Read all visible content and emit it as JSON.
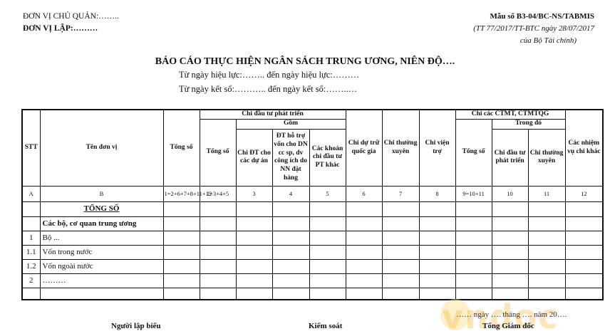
{
  "header": {
    "don_vi_chu_quan": "ĐƠN VỊ CHỦ QUẢN:……..",
    "don_vi_lap": "ĐƠN VỊ LẬP:………",
    "form_code": "Mẫu số B3-04/BC-NS/TABMIS",
    "circular": "(TT 77/2017/TT-BTC ngày 28/07/2017",
    "issuer": "của Bộ Tài chính)"
  },
  "title": "BÁO CÁO THỰC HIỆN NGÂN SÁCH TRUNG ƯƠNG, NIÊN ĐỘ….",
  "subtitle_1": "Từ ngày hiệu lực:…….. đến ngày hiệu lực:………",
  "subtitle_2": "Từ ngày kết sổ:……….. đến ngày kết sổ:……..…",
  "table": {
    "headers": {
      "stt": "STT",
      "ten_don_vi": "Tên đơn vị",
      "tong_so": "Tổng số",
      "chi_dtpt_group": "Chi đầu tư phát triển",
      "gom": "Gồm",
      "dtpt_tong_so": "Tổng số",
      "chi_dt_du_an": "Chi ĐT cho các dự án",
      "dt_ho_tro": "ĐT hỗ trợ vốn cho DN cc sp, dv công ích do NN đặt hàng",
      "khoan_chi_khac": "Các khoản chi đầu tư PT khác",
      "du_tru": "Chi dự trữ quốc gia",
      "thuong_xuyen": "Chi thường xuyên",
      "vien_tro": "Chi viện trợ",
      "ctmt_group": "Chi các CTMT, CTMTQG",
      "trong_do": "Trong đó",
      "ctmt_tong_so": "Tổng số",
      "ctmt_dtpt": "Chi đầu tư phát triển",
      "ctmt_thuong_xuyen": "Chi thường xuyên",
      "nhiem_vu_khac": "Các nhiệm vụ chi khác"
    },
    "index_row": [
      "A",
      "B",
      "1=2+6+7+8+11+12",
      "2=3+4+5",
      "3",
      "4",
      "5",
      "6",
      "7",
      "8",
      "9=10+11",
      "10",
      "11",
      "12"
    ],
    "rows": [
      {
        "stt": "",
        "name": "TỔNG SỐ"
      },
      {
        "stt": "",
        "name": "Các bộ, cơ quan trung ương"
      },
      {
        "stt": "1",
        "name": "Bộ ..."
      },
      {
        "stt": "1.1",
        "name": "Vốn trong nước"
      },
      {
        "stt": "1.2",
        "name": "Vốn ngoài nước"
      },
      {
        "stt": "2",
        "name": "………"
      },
      {
        "stt": "",
        "name": ""
      }
    ]
  },
  "footer": {
    "date_line": "…… ngày …. tháng …. năm 20….",
    "nguoi_lap_bieu": "Người lập biểu",
    "kiem_soat": "Kiểm soát",
    "tong_giam_doc": "Tổng Giám đốc"
  },
  "watermark": {
    "text": "vndoc",
    "color": "#f5b73a"
  }
}
